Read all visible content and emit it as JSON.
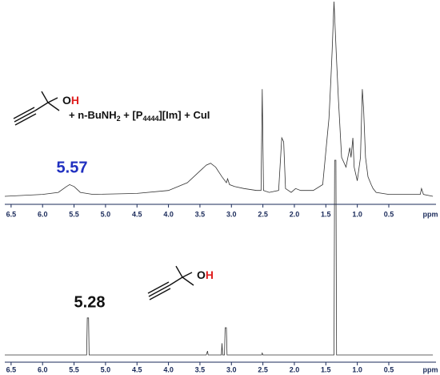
{
  "chart_data": [
    {
      "type": "line",
      "color": "#333333",
      "x": [
        6.6,
        6.0,
        5.75,
        5.62,
        5.57,
        5.5,
        5.4,
        5.2,
        4.5,
        4.0,
        3.7,
        3.5,
        3.4,
        3.33,
        3.25,
        3.15,
        3.08,
        3.06,
        3.03,
        2.95,
        2.8,
        2.6,
        2.53,
        2.51,
        2.49,
        2.4,
        2.25,
        2.2,
        2.17,
        2.14,
        2.05,
        1.98,
        1.9,
        1.7,
        1.55,
        1.48,
        1.45,
        1.42,
        1.4,
        1.37,
        1.35,
        1.33,
        1.3,
        1.25,
        1.18,
        1.12,
        1.1,
        1.07,
        1.05,
        1.0,
        0.95,
        0.92,
        0.9,
        0.87,
        0.83,
        0.78,
        0.75,
        0.7,
        0.5,
        0.0,
        -0.02,
        -0.05,
        -0.2
      ],
      "values": [
        0,
        1,
        2,
        5,
        6,
        5,
        2,
        1,
        1.5,
        3,
        7,
        13,
        16,
        17,
        15,
        10,
        7,
        9,
        6,
        5,
        4,
        3,
        3,
        55,
        3,
        2,
        3,
        30,
        28,
        4,
        2,
        4,
        3,
        3,
        6,
        30,
        40,
        60,
        75,
        100,
        85,
        70,
        50,
        20,
        15,
        25,
        20,
        30,
        15,
        8,
        20,
        55,
        45,
        20,
        10,
        6,
        4,
        2,
        1,
        1,
        4,
        1,
        0
      ],
      "xlim": [
        6.6,
        -0.25
      ],
      "ylim": [
        0,
        100
      ],
      "xticks": [
        6.5,
        {
          "value": 6,
          "label": "6.0"
        },
        5.5,
        {
          "value": 5,
          "label": "5.0"
        },
        4.5,
        {
          "value": 4,
          "label": "4.0"
        },
        3.5,
        {
          "value": 3,
          "label": "3.0"
        },
        2.5,
        {
          "value": 2,
          "label": "2.0"
        },
        1.5,
        {
          "value": 1,
          "label": "1.0"
        },
        0.5
      ],
      "xlabel": "ppm",
      "annotations": [
        {
          "text": "5.57",
          "color": "#2030c0"
        }
      ],
      "reagents": [
        "+ n-BuNH",
        "2",
        " + [P",
        "4444",
        "][Im] + CuI"
      ],
      "molecule": [
        {
          "text": "O",
          "color": "#111111"
        },
        {
          "text": "H",
          "color": "#e02020"
        }
      ]
    },
    {
      "type": "line",
      "color": "#333333",
      "x": [
        6.6,
        5.3,
        5.29,
        5.27,
        5.26,
        3.4,
        3.38,
        3.37,
        3.16,
        3.15,
        3.14,
        3.11,
        3.1,
        3.08,
        3.07,
        2.52,
        2.51,
        2.5,
        1.37,
        1.36,
        1.34,
        1.33,
        -0.2
      ],
      "values": [
        0,
        0,
        19,
        19,
        0,
        0,
        2,
        0,
        0,
        6,
        0,
        0,
        14,
        14,
        0,
        0,
        1,
        0,
        0,
        100,
        100,
        0,
        0
      ],
      "xlim": [
        6.6,
        -0.25
      ],
      "ylim": [
        0,
        100
      ],
      "xticks": [
        6.5,
        {
          "value": 6,
          "label": "6.0"
        },
        5.5,
        {
          "value": 5,
          "label": "5.0"
        },
        4.5,
        {
          "value": 4,
          "label": "4.0"
        },
        3.5,
        {
          "value": 3,
          "label": "3.0"
        },
        2.5,
        {
          "value": 2,
          "label": "2.0"
        },
        1.5,
        {
          "value": 1,
          "label": "1.0"
        },
        0.5
      ],
      "xlabel": "ppm",
      "annotations": [
        {
          "text": "5.28",
          "color": "#111111"
        }
      ],
      "molecule": [
        {
          "text": "O",
          "color": "#111111"
        },
        {
          "text": "H",
          "color": "#e02020"
        }
      ]
    }
  ]
}
